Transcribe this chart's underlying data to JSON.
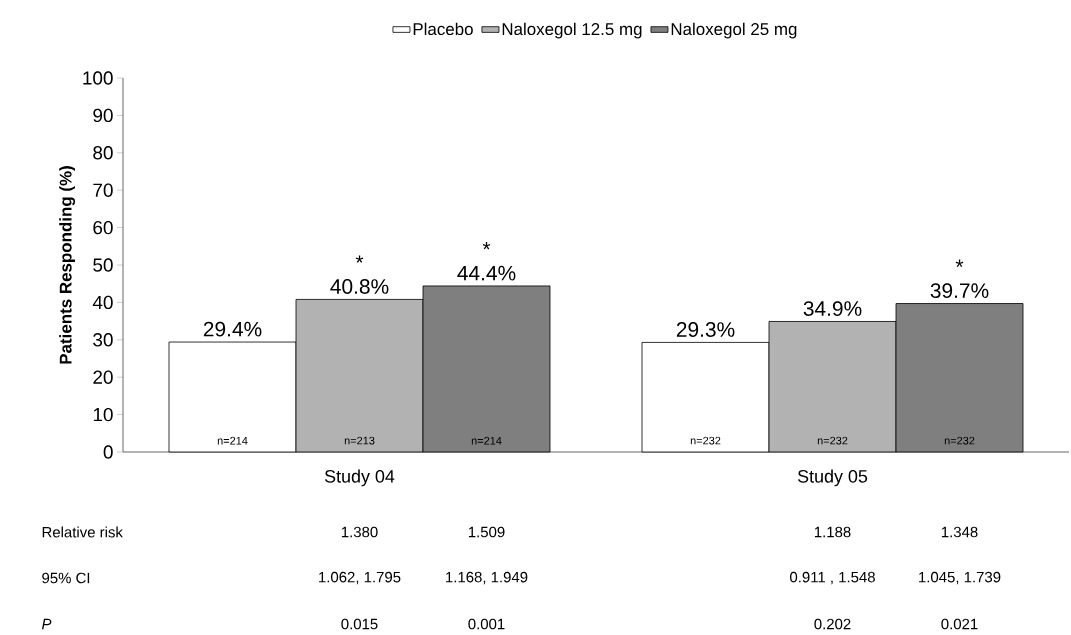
{
  "chart_data": {
    "type": "bar",
    "ylabel": "Patients Responding (%)",
    "categories": [
      "Study 04",
      "Study 05"
    ],
    "series": [
      {
        "name": "Placebo",
        "color": "#ffffff",
        "values": [
          29.4,
          29.3
        ],
        "value_labels": [
          "29.4%",
          "29.3%"
        ]
      },
      {
        "name": "Naloxegol 12.5 mg",
        "color": "#b2b2b2",
        "values": [
          40.8,
          34.9
        ],
        "value_labels": [
          "40.8%",
          "34.9%"
        ]
      },
      {
        "name": "Naloxegol 25 mg",
        "color": "#7f7f7f",
        "values": [
          44.4,
          39.7
        ],
        "value_labels": [
          "44.4%",
          "39.7%"
        ]
      }
    ],
    "ylim": [
      0,
      100
    ],
    "yticks": [
      0,
      10,
      20,
      30,
      40,
      50,
      60,
      70,
      80,
      90,
      100
    ],
    "grid": false,
    "legend": "top",
    "annotations": [
      "n=214",
      "n=213",
      "n=214",
      "n=232",
      "n=232",
      "n=232",
      "*",
      "*",
      "*",
      "Relative risk",
      "1.380",
      "1.509",
      "1.188",
      "1.348",
      "95% CI",
      "1.062, 1.795",
      "1.168, 1.949",
      "0.911 , 1.548",
      "1.045, 1.739",
      "P",
      "0.015",
      "0.001",
      "0.202",
      "0.021"
    ]
  }
}
